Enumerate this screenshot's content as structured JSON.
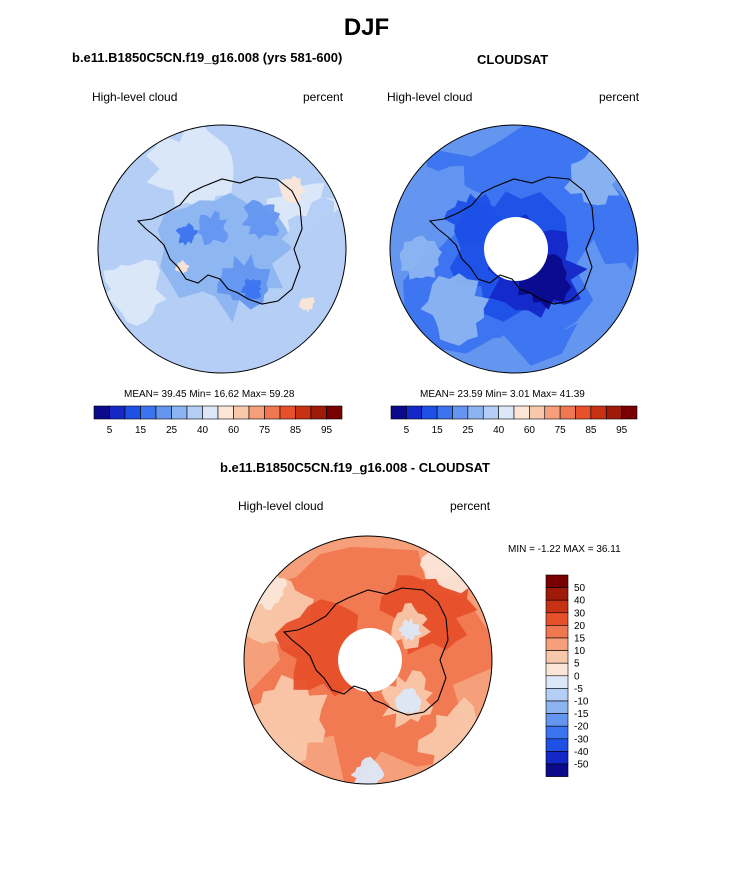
{
  "figure": {
    "title": "DJF",
    "diff_title": "b.e11.B1850C5CN.f19_g16.008 - CLOUDSAT"
  },
  "colors": {
    "abs_scale": [
      "#0a0a8a",
      "#1428c8",
      "#1e50e6",
      "#3c74f0",
      "#6496f0",
      "#8cb4f0",
      "#b4cef5",
      "#dce8f8",
      "#fbe6d8",
      "#f8c8aa",
      "#f5a07a",
      "#f07850",
      "#e6502a",
      "#c83214",
      "#a01a0a",
      "#780000"
    ],
    "diff_scale": [
      "#0a0a8a",
      "#1428c8",
      "#1e50e6",
      "#3c74f0",
      "#6496f0",
      "#8cb4f0",
      "#b4cef5",
      "#dce8f8",
      "#fbe6d8",
      "#f8c8aa",
      "#f5a07a",
      "#f07850",
      "#e6502a",
      "#c83214",
      "#a01a0a",
      "#780000"
    ],
    "coast": "#000000"
  },
  "chart_data": [
    {
      "type": "heatmap",
      "title": "b.e11.B1850C5CN.f19_g16.008 (yrs 581-600)",
      "variable": "High-level cloud",
      "units": "percent",
      "projection": "polar stereographic, south pole",
      "stats": {
        "mean": 39.45,
        "min": 16.62,
        "max": 59.28
      },
      "stats_text": "MEAN=  39.45  Min=  16.62  Max=  59.28",
      "colorbar": {
        "orientation": "horizontal",
        "levels": [
          5,
          10,
          15,
          20,
          25,
          30,
          40,
          50,
          60,
          65,
          75,
          80,
          85,
          90,
          95
        ],
        "tick_labels": [
          "5",
          "15",
          "25",
          "40",
          "60",
          "75",
          "85",
          "95"
        ]
      },
      "dominant_bins": [
        "30-40",
        "40-50"
      ]
    },
    {
      "type": "heatmap",
      "title": "CLOUDSAT",
      "variable": "High-level cloud",
      "units": "percent",
      "projection": "polar stereographic, south pole",
      "stats": {
        "mean": 23.59,
        "min": 3.01,
        "max": 41.39
      },
      "stats_text": "MEAN=  23.59  Min=   3.01  Max=  41.39",
      "colorbar": {
        "orientation": "horizontal",
        "levels": [
          5,
          10,
          15,
          20,
          25,
          30,
          40,
          50,
          60,
          65,
          75,
          80,
          85,
          90,
          95
        ],
        "tick_labels": [
          "5",
          "15",
          "25",
          "40",
          "60",
          "75",
          "85",
          "95"
        ]
      },
      "dominant_bins": [
        "15-25",
        "25-30"
      ],
      "missing_polar_cap": true
    },
    {
      "type": "heatmap",
      "title": "b.e11.B1850C5CN.f19_g16.008 - CLOUDSAT",
      "variable": "High-level cloud",
      "units": "percent",
      "projection": "polar stereographic, south pole",
      "stats": {
        "min": -1.22,
        "max": 36.11
      },
      "stats_text": "MIN =  -1.22 MAX =  36.11",
      "colorbar": {
        "orientation": "vertical",
        "levels": [
          -50,
          -40,
          -30,
          -20,
          -15,
          -10,
          -5,
          0,
          5,
          10,
          15,
          20,
          30,
          40,
          50
        ],
        "tick_labels": [
          "50",
          "40",
          "30",
          "20",
          "15",
          "10",
          "5",
          "0",
          "-5",
          "-10",
          "-15",
          "-20",
          "-30",
          "-40",
          "-50"
        ]
      },
      "dominant_bins": [
        "10-20",
        "20-30"
      ],
      "missing_polar_cap": true
    }
  ]
}
